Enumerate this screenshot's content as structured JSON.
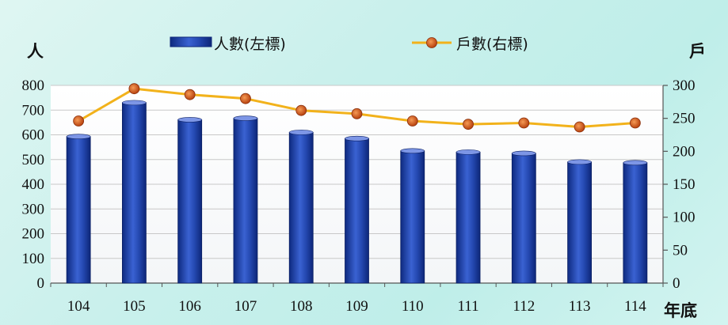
{
  "chart_data": {
    "type": "bar+line",
    "categories": [
      "104",
      "105",
      "106",
      "107",
      "108",
      "109",
      "110",
      "111",
      "112",
      "113",
      "114"
    ],
    "series": [
      {
        "name": "人數(左標)",
        "type": "bar",
        "axis": "left",
        "color": "#2a4fb5",
        "values": [
          593,
          730,
          661,
          667,
          610,
          585,
          535,
          530,
          525,
          490,
          487
        ]
      },
      {
        "name": "戶數(右標)",
        "type": "line",
        "axis": "right",
        "color": "#f2b21b",
        "marker_color": "#d9541a",
        "values": [
          246,
          295,
          286,
          280,
          262,
          257,
          246,
          241,
          243,
          237,
          243
        ]
      }
    ],
    "left_axis": {
      "label": "人",
      "ylim": [
        0,
        800
      ],
      "ticks": [
        "0",
        "100",
        "200",
        "300",
        "400",
        "500",
        "600",
        "700",
        "800"
      ]
    },
    "right_axis": {
      "label": "戶",
      "ylim": [
        0,
        300
      ],
      "ticks": [
        "0",
        "50",
        "100",
        "150",
        "200",
        "250",
        "300"
      ]
    },
    "x_axis": {
      "label": "年底"
    },
    "grid": true,
    "legend": "top"
  }
}
